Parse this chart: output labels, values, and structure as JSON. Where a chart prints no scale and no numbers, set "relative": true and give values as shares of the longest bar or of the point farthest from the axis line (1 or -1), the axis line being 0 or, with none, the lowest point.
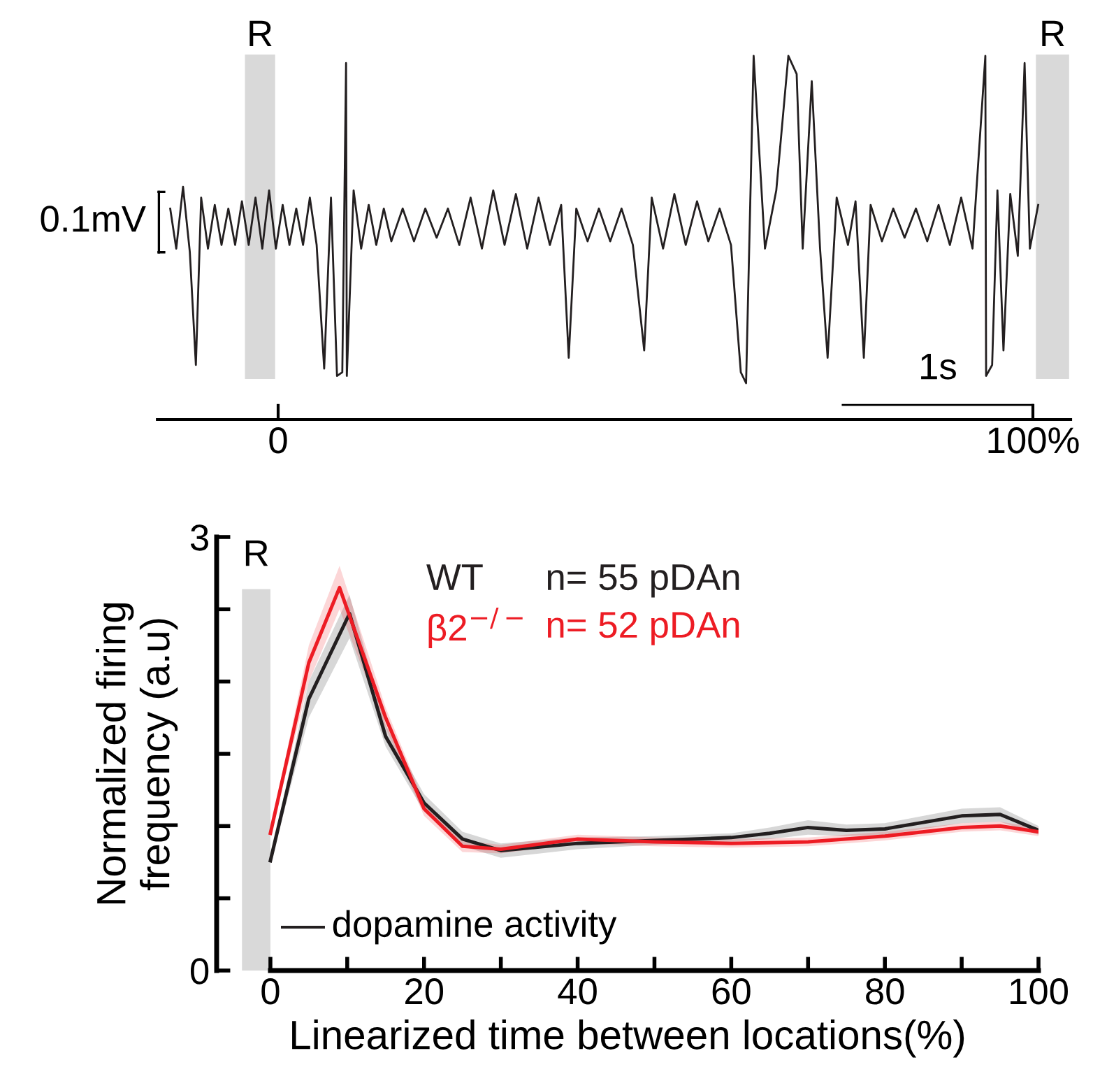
{
  "chart_data": [
    {
      "type": "line",
      "relative": true,
      "xlim": [
        -16,
        105
      ],
      "xticks": [
        {
          "value": 0,
          "label": "0"
        },
        {
          "value": 100,
          "label": "100%"
        }
      ],
      "tick_labels": "x",
      "annotations": [
        "0.1mV",
        "1s"
      ],
      "bands": [
        {
          "axis": "x",
          "from": -4.4,
          "to": -0.4,
          "label": "R",
          "color": "#d9d9d9"
        },
        {
          "axis": "x",
          "from": 100.4,
          "to": 104.8,
          "label": "R",
          "color": "#d9d9d9"
        }
      ],
      "series": [
        {
          "color": "#231f20",
          "x": [
            -14.3,
            -13.5,
            -12.6,
            -11.7,
            -10.9,
            -10.2,
            -9.3,
            -8.4,
            -7.5,
            -6.6,
            -5.7,
            -4.8,
            -3.9,
            -3.0,
            -2.1,
            -1.2,
            -0.3,
            0.6,
            1.5,
            2.4,
            3.3,
            4.2,
            5.1,
            6.1,
            7.0,
            7.8,
            8.5,
            9.0,
            9.1,
            10.0,
            11.0,
            12.0,
            13.0,
            14.0,
            15.0,
            16.5,
            18.0,
            19.5,
            21.0,
            22.5,
            24.0,
            25.5,
            27.0,
            28.5,
            30.0,
            31.5,
            33.0,
            34.5,
            36.0,
            37.5,
            38.5,
            39.5,
            41.0,
            42.5,
            44.0,
            45.5,
            47.0,
            48.5,
            49.5,
            51.0,
            52.5,
            54.0,
            55.5,
            57.0,
            58.5,
            60.0,
            61.3,
            62.0,
            63.0,
            64.5,
            66.0,
            67.6,
            68.7,
            69.5,
            70.7,
            71.8,
            72.8,
            74.0,
            75.5,
            76.5,
            77.6,
            78.5,
            80.0,
            81.5,
            83.0,
            84.5,
            86.0,
            87.5,
            89.0,
            90.5,
            92.0,
            93.7,
            93.8,
            94.6,
            95.3,
            96.1,
            97.0,
            98.0,
            98.9,
            99.6,
            100.7
          ],
          "values": [
            0.58,
            0.47,
            0.64,
            0.46,
            0.15,
            0.61,
            0.47,
            0.59,
            0.48,
            0.58,
            0.48,
            0.6,
            0.48,
            0.61,
            0.47,
            0.63,
            0.47,
            0.59,
            0.48,
            0.58,
            0.48,
            0.61,
            0.48,
            0.14,
            0.61,
            0.12,
            0.13,
            0.98,
            0.12,
            0.63,
            0.47,
            0.59,
            0.48,
            0.58,
            0.49,
            0.58,
            0.49,
            0.58,
            0.5,
            0.58,
            0.48,
            0.61,
            0.47,
            0.63,
            0.48,
            0.62,
            0.47,
            0.61,
            0.48,
            0.59,
            0.17,
            0.58,
            0.49,
            0.58,
            0.49,
            0.58,
            0.48,
            0.19,
            0.61,
            0.47,
            0.62,
            0.48,
            0.6,
            0.49,
            0.58,
            0.48,
            0.13,
            0.1,
            1.0,
            0.47,
            0.63,
            1.0,
            0.95,
            0.47,
            0.93,
            0.47,
            0.17,
            0.61,
            0.48,
            0.6,
            0.17,
            0.59,
            0.49,
            0.58,
            0.5,
            0.58,
            0.49,
            0.59,
            0.48,
            0.61,
            0.47,
            1.0,
            0.12,
            0.15,
            0.63,
            0.19,
            0.62,
            0.45,
            0.98,
            0.47,
            0.59
          ]
        },
        {
          "color": "#000000",
          "x": [
            74.8,
            100
          ],
          "values": [
            0.04,
            0.04
          ]
        }
      ]
    },
    {
      "type": "line",
      "xlabel": "Linearized time between locations(%)",
      "ylabel": "Normalized firing\nfrequency (a.u)",
      "xlim": [
        -7,
        100
      ],
      "ylim": [
        0,
        3
      ],
      "xticks": [
        0,
        {
          "value": 10,
          "label": null
        },
        20,
        {
          "value": 30,
          "label": null
        },
        40,
        {
          "value": 50,
          "label": null
        },
        60,
        {
          "value": 70,
          "label": null
        },
        80,
        {
          "value": 90,
          "label": null
        },
        100
      ],
      "yticks": [
        0,
        {
          "value": 0.5,
          "label": null
        },
        {
          "value": 1,
          "label": null
        },
        {
          "value": 1.5,
          "label": null
        },
        {
          "value": 2,
          "label": null
        },
        {
          "value": 2.5,
          "label": null
        },
        3
      ],
      "legend": "top",
      "grid": false,
      "annotations": [
        "n= 55 pDAn",
        "n= 52 pDAn",
        "dopamine activity"
      ],
      "bands": [
        {
          "axis": "x",
          "from": -3.7,
          "to": 0,
          "label": "R",
          "color": "#d9d9d9"
        }
      ],
      "series": [
        {
          "name": "WT",
          "color": "#231f20",
          "x": [
            0,
            5,
            10.3,
            15,
            20,
            25,
            30,
            40,
            50,
            60,
            65,
            70,
            75,
            80,
            90,
            95,
            100
          ],
          "values": [
            0.76,
            1.88,
            2.47,
            1.62,
            1.16,
            0.91,
            0.83,
            0.88,
            0.9,
            0.92,
            0.95,
            0.99,
            0.97,
            0.98,
            1.07,
            1.08,
            0.97
          ],
          "lower": [
            0.74,
            1.75,
            2.3,
            1.55,
            1.1,
            0.86,
            0.78,
            0.84,
            0.87,
            0.89,
            0.91,
            0.94,
            0.93,
            0.94,
            1.02,
            1.03,
            0.94
          ],
          "upper": [
            0.78,
            2.0,
            2.6,
            1.7,
            1.22,
            0.96,
            0.88,
            0.92,
            0.93,
            0.95,
            0.99,
            1.04,
            1.01,
            1.02,
            1.12,
            1.13,
            1.0
          ]
        },
        {
          "name": "β2$^{−/−}$",
          "color": "#ed1c24",
          "x": [
            0,
            5,
            9,
            15,
            20,
            25,
            30,
            40,
            50,
            60,
            70,
            80,
            90,
            95,
            100
          ],
          "values": [
            0.95,
            2.13,
            2.65,
            1.75,
            1.12,
            0.86,
            0.84,
            0.91,
            0.89,
            0.88,
            0.89,
            0.93,
            0.99,
            1.0,
            0.96
          ],
          "lower": [
            0.93,
            2.0,
            2.5,
            1.68,
            1.07,
            0.82,
            0.81,
            0.88,
            0.86,
            0.85,
            0.86,
            0.9,
            0.96,
            0.97,
            0.93
          ],
          "upper": [
            0.97,
            2.25,
            2.8,
            1.82,
            1.17,
            0.9,
            0.87,
            0.94,
            0.92,
            0.91,
            0.92,
            0.96,
            1.02,
            1.03,
            0.99
          ]
        }
      ]
    }
  ]
}
